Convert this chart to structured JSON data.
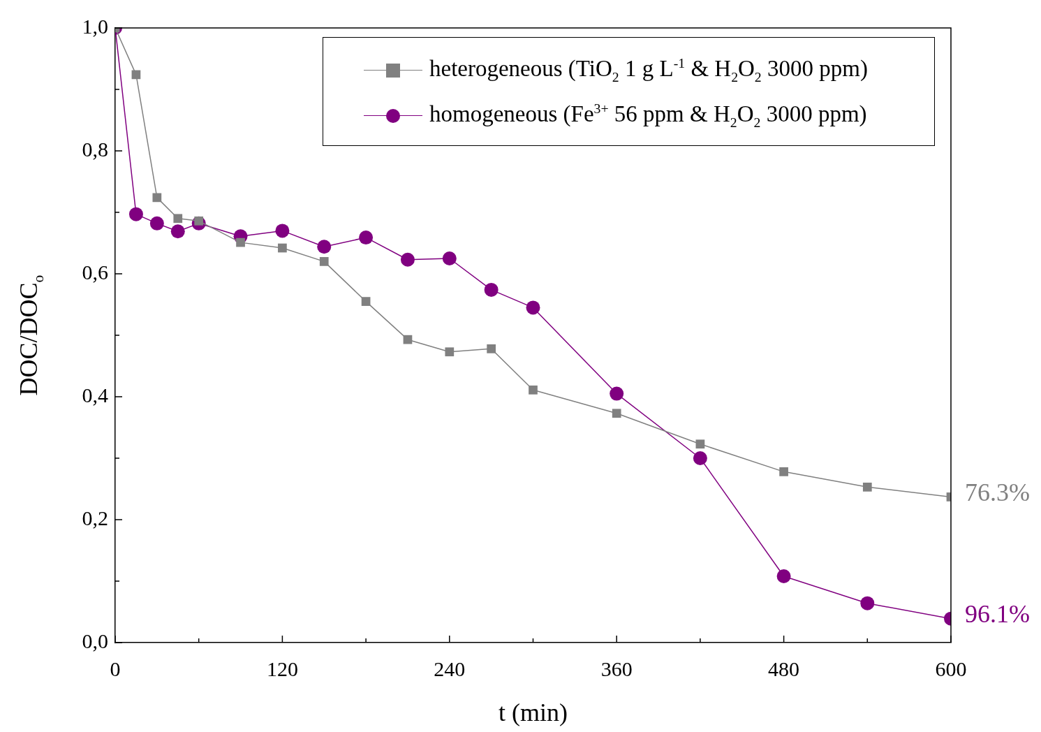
{
  "chart_data": {
    "type": "line",
    "xlabel": "t (min)",
    "ylabel": "DOC/DOC$_{o}$",
    "xlim": [
      0,
      600
    ],
    "ylim": [
      0,
      1.0
    ],
    "xticks": [
      0,
      {
        "value": 60,
        "label": null
      },
      120,
      {
        "value": 180,
        "label": null
      },
      240,
      {
        "value": 300,
        "label": null
      },
      360,
      {
        "value": 420,
        "label": null
      },
      480,
      {
        "value": 540,
        "label": null
      },
      600
    ],
    "yticks": [
      {
        "value": 0,
        "label": "0,0"
      },
      {
        "value": 0.1,
        "label": null
      },
      {
        "value": 0.2,
        "label": "0,2"
      },
      {
        "value": 0.3,
        "label": null
      },
      {
        "value": 0.4,
        "label": "0,4"
      },
      {
        "value": 0.5,
        "label": null
      },
      {
        "value": 0.6,
        "label": "0,6"
      },
      {
        "value": 0.7,
        "label": null
      },
      {
        "value": 0.8,
        "label": "0,8"
      },
      {
        "value": 0.9,
        "label": null
      },
      {
        "value": 1.0,
        "label": "1,0"
      }
    ],
    "grid": false,
    "legend": "top right",
    "line_style": "solid",
    "x": [
      0,
      15,
      30,
      45,
      60,
      90,
      120,
      150,
      180,
      210,
      240,
      270,
      300,
      360,
      420,
      480,
      540,
      600
    ],
    "series": [
      {
        "name": "heterogeneous (TiO$_{2}$ 1 g L$^{-1}$ & H$_{2}$O$_{2}$ 3000 ppm)",
        "color": "#808080",
        "marker": "square",
        "values": [
          1.0,
          0.924,
          0.724,
          0.69,
          0.686,
          0.651,
          0.642,
          0.62,
          0.555,
          0.493,
          0.473,
          0.478,
          0.411,
          0.373,
          0.323,
          0.278,
          0.253,
          0.237
        ]
      },
      {
        "name": "homogeneous (Fe$^{3+}$ 56 ppm & H$_{2}$O$_{2}$ 3000 ppm)",
        "color": "#800080",
        "marker": "circle",
        "values": [
          1.0,
          0.697,
          0.682,
          0.669,
          0.682,
          0.661,
          0.67,
          0.644,
          0.659,
          0.623,
          0.625,
          0.574,
          0.545,
          0.405,
          0.3,
          0.108,
          0.064,
          0.039
        ]
      }
    ],
    "annotations": [
      {
        "text": "76.3%",
        "x": 600,
        "y": 0.237
      },
      {
        "text": "96.1%",
        "x": 600,
        "y": 0.039
      }
    ]
  }
}
